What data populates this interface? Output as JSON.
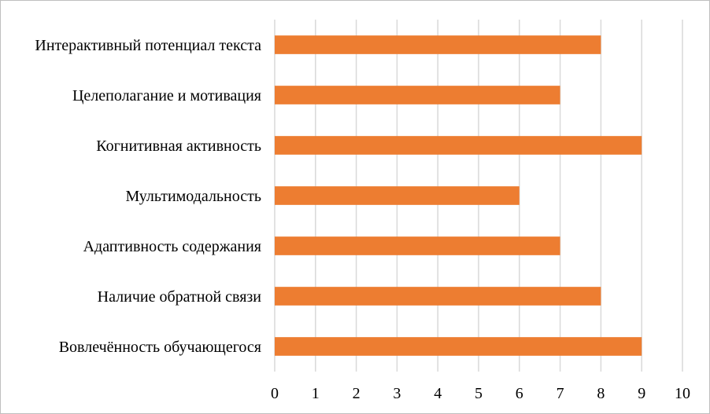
{
  "chart_data": {
    "type": "bar",
    "orientation": "horizontal",
    "categories": [
      "Интерактивный потенциал текста",
      "Целеполагание и мотивация",
      "Когнитивная активность",
      "Мультимодальность",
      "Адаптивность содержания",
      "Наличие обратной связи",
      "Вовлечённость обучающегося"
    ],
    "values": [
      8,
      7,
      9,
      6,
      7,
      8,
      9
    ],
    "xlim": [
      0,
      10
    ],
    "xticks": [
      "0",
      "1",
      "2",
      "3",
      "4",
      "5",
      "6",
      "7",
      "8",
      "9",
      "10"
    ],
    "title": "",
    "xlabel": "",
    "ylabel": "",
    "grid": "vertical",
    "legend": "none",
    "bar_color": "#ED7D31",
    "grid_color": "#d9d9d9"
  }
}
